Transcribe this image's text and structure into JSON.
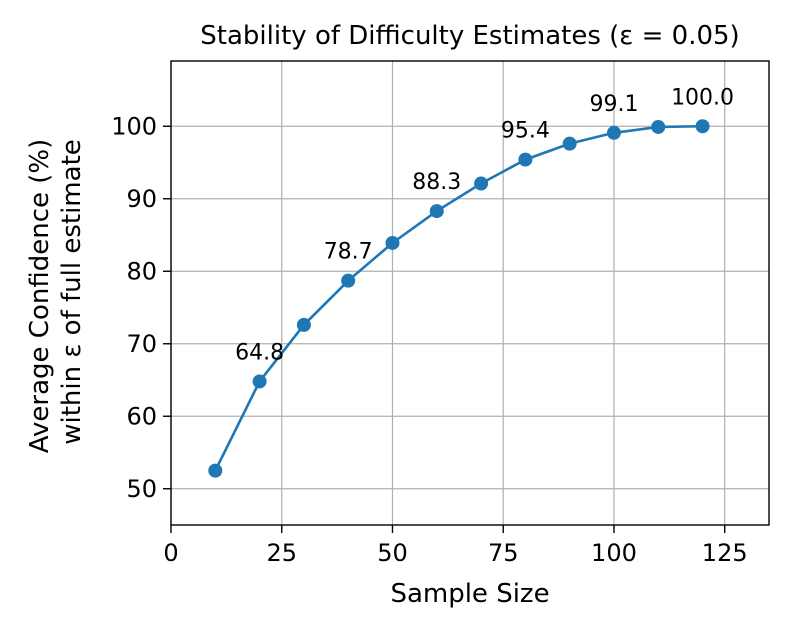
{
  "chart_data": {
    "type": "line",
    "title": "Stability of Difficulty Estimates (ε = 0.05)",
    "xlabel": "Sample Size",
    "ylabel_line1": "Average Confidence (%)",
    "ylabel_line2": "within ε of full estimate",
    "xlim": [
      0,
      135
    ],
    "ylim": [
      45,
      109
    ],
    "xticks": [
      0,
      25,
      50,
      75,
      100,
      125
    ],
    "yticks": [
      50,
      60,
      70,
      80,
      90,
      100
    ],
    "grid": true,
    "series": [
      {
        "name": "Average Confidence",
        "color": "#1f77b4",
        "x": [
          10,
          20,
          30,
          40,
          50,
          60,
          70,
          80,
          90,
          100,
          110,
          120
        ],
        "values": [
          52.5,
          64.8,
          72.6,
          78.7,
          83.9,
          88.3,
          92.1,
          95.4,
          97.6,
          99.1,
          99.9,
          100.0
        ]
      }
    ],
    "annotations": [
      {
        "x": 20,
        "y": 64.8,
        "text": "64.8"
      },
      {
        "x": 40,
        "y": 78.7,
        "text": "78.7"
      },
      {
        "x": 60,
        "y": 88.3,
        "text": "88.3"
      },
      {
        "x": 80,
        "y": 95.4,
        "text": "95.4"
      },
      {
        "x": 100,
        "y": 99.1,
        "text": "99.1"
      },
      {
        "x": 120,
        "y": 100.0,
        "text": "100.0"
      }
    ]
  }
}
